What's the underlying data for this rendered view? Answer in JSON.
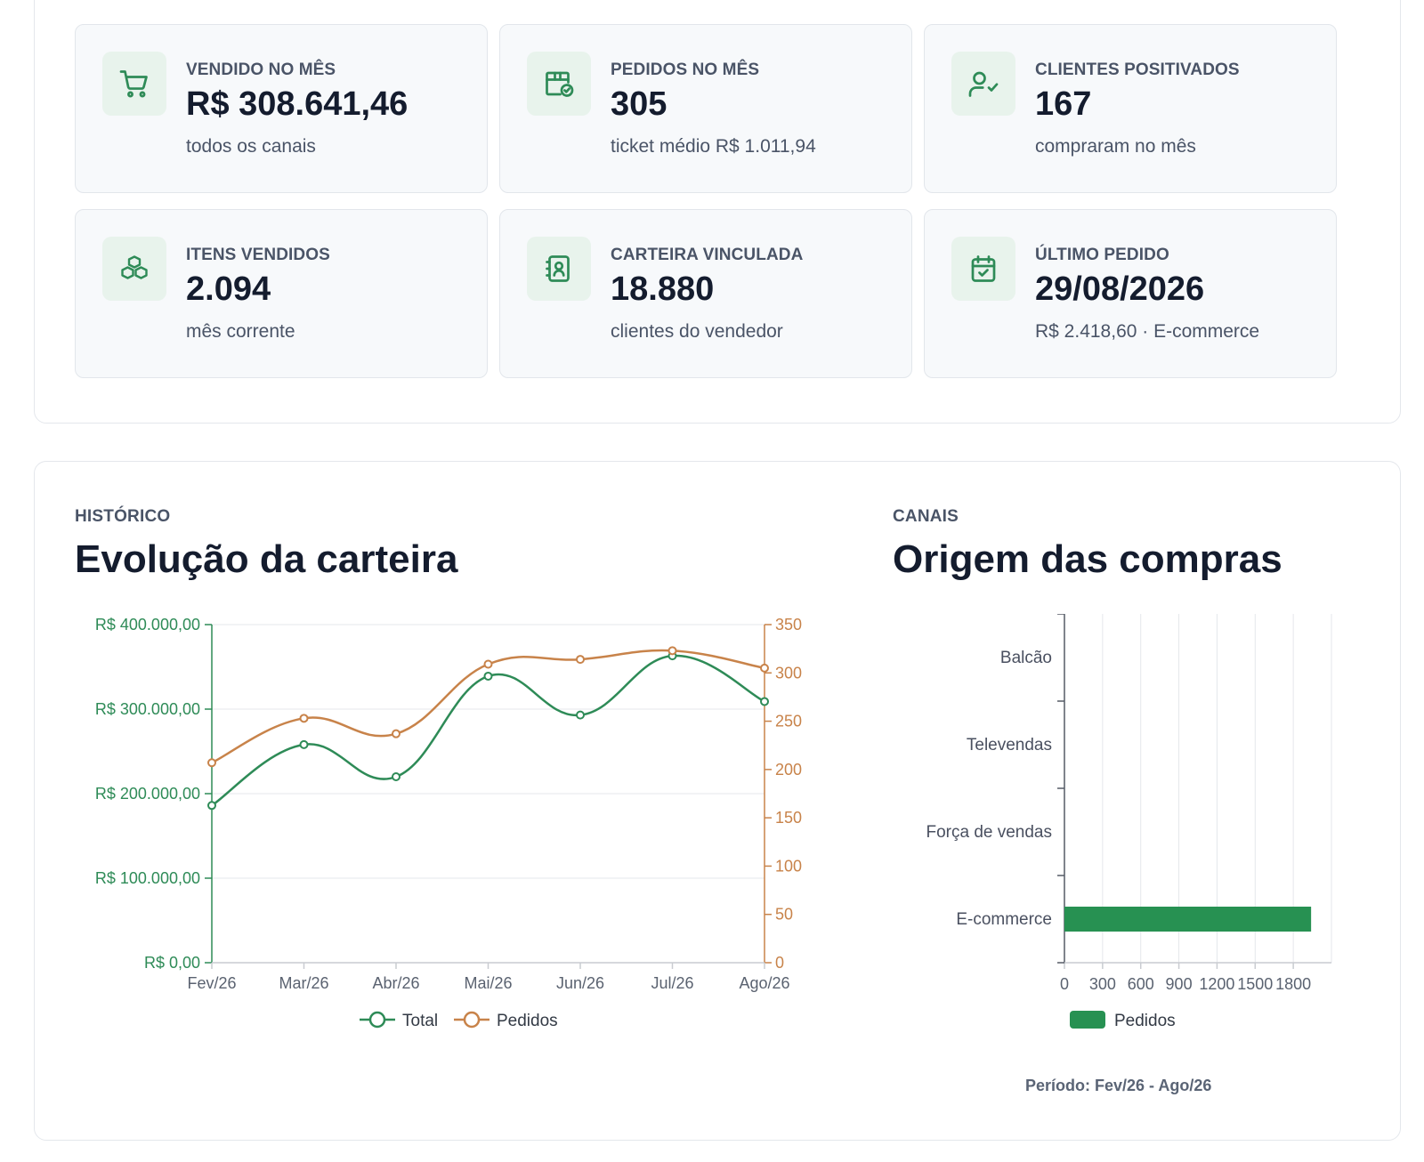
{
  "colors": {
    "green": "#2e8b57",
    "orange": "#c8834a",
    "bar": "#279152",
    "icon_bg": "#e8f3ec"
  },
  "kpis": [
    {
      "icon": "shopping-cart-icon",
      "label": "VENDIDO NO MÊS",
      "value": "R$ 308.641,46",
      "sub": "todos os canais"
    },
    {
      "icon": "package-check-icon",
      "label": "PEDIDOS NO MÊS",
      "value": "305",
      "sub": "ticket médio R$ 1.011,94"
    },
    {
      "icon": "user-check-icon",
      "label": "CLIENTES POSITIVADOS",
      "value": "167",
      "sub": "compraram no mês"
    },
    {
      "icon": "boxes-icon",
      "label": "ITENS VENDIDOS",
      "value": "2.094",
      "sub": "mês corrente"
    },
    {
      "icon": "contact-book-icon",
      "label": "CARTEIRA VINCULADA",
      "value": "18.880",
      "sub": "clientes do vendedor"
    },
    {
      "icon": "calendar-check-icon",
      "label": "ÚLTIMO PEDIDO",
      "value": "29/08/2026",
      "sub": "R$ 2.418,60 · E-commerce"
    }
  ],
  "history": {
    "eyebrow": "HISTÓRICO",
    "title": "Evolução da carteira"
  },
  "channels": {
    "eyebrow": "CANAIS",
    "title": "Origem das compras",
    "period": "Período: Fev/26 - Ago/26"
  },
  "chart_data": [
    {
      "type": "line",
      "categories": [
        "Fev/26",
        "Mar/26",
        "Abr/26",
        "Mai/26",
        "Jun/26",
        "Jul/26",
        "Ago/26"
      ],
      "series": [
        {
          "name": "Total",
          "axis": "left",
          "color": "#2e8b57",
          "values": [
            186000,
            258000,
            220000,
            339000,
            293000,
            363000,
            309000
          ]
        },
        {
          "name": "Pedidos",
          "axis": "right",
          "color": "#c8834a",
          "values": [
            207,
            253,
            237,
            309,
            314,
            323,
            305
          ]
        }
      ],
      "y_left": {
        "min": 0,
        "max": 400000,
        "ticks": [
          "R$ 0,00",
          "R$ 100.000,00",
          "R$ 200.000,00",
          "R$ 300.000,00",
          "R$ 400.000,00"
        ]
      },
      "y_right": {
        "min": 0,
        "max": 350,
        "ticks": [
          "0",
          "50",
          "100",
          "150",
          "200",
          "250",
          "300",
          "350"
        ]
      },
      "grid": true,
      "legend": "bottom"
    },
    {
      "type": "bar",
      "orientation": "horizontal",
      "categories": [
        "Balcão",
        "Televendas",
        "Força de vendas",
        "E-commerce"
      ],
      "series": [
        {
          "name": "Pedidos",
          "color": "#279152",
          "values": [
            0,
            0,
            0,
            1940
          ]
        }
      ],
      "x_axis": {
        "min": 0,
        "max": 2100,
        "ticks": [
          "0",
          "300",
          "600",
          "900",
          "1200",
          "1500",
          "1800"
        ]
      },
      "grid": true,
      "legend": "bottom"
    }
  ]
}
